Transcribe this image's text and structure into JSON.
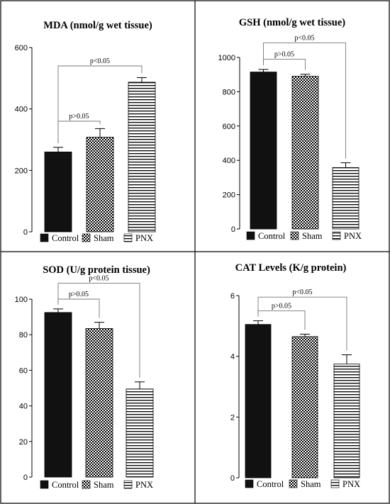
{
  "chart_data": [
    {
      "type": "bar",
      "title": "MDA (nmol/g wet tissue)",
      "categories": [
        "Control",
        "Sham",
        "PNX"
      ],
      "values": [
        260,
        308,
        487
      ],
      "errors": [
        15,
        28,
        15
      ],
      "ylim": [
        0,
        600
      ],
      "yticks": [
        0,
        200,
        400,
        600
      ],
      "annotations": [
        {
          "text": "p>0.05",
          "from": 0,
          "to": 1,
          "y": 360
        },
        {
          "text": "p<0.05",
          "from": 0,
          "to": 2,
          "y": 540
        }
      ],
      "legend": "bottom"
    },
    {
      "type": "bar",
      "title": "GSH (nmol/g wet tissue)",
      "categories": [
        "Control",
        "Sham",
        "PNX"
      ],
      "values": [
        915,
        890,
        358
      ],
      "errors": [
        15,
        12,
        28
      ],
      "ylim": [
        0,
        1000
      ],
      "yticks": [
        0,
        200,
        400,
        600,
        800,
        1000
      ],
      "annotations": [
        {
          "text": "p>0.05",
          "from": 0,
          "to": 1,
          "y": 990
        },
        {
          "text": "p<0.05",
          "from": 0,
          "to": 2,
          "y": 1085
        }
      ],
      "legend": "bottom"
    },
    {
      "type": "bar",
      "title": "SOD  (U/g protein tissue)",
      "categories": [
        "Control",
        "Sham",
        "PNX"
      ],
      "values": [
        92.5,
        83.5,
        49.5
      ],
      "errors": [
        2,
        3.5,
        4
      ],
      "ylim": [
        0,
        100
      ],
      "yticks": [
        0,
        20,
        40,
        60,
        80,
        100
      ],
      "annotations": [
        {
          "text": "p>0.05",
          "from": 0,
          "to": 1,
          "y": 100
        },
        {
          "text": "p<0.05",
          "from": 0,
          "to": 2,
          "y": 109
        }
      ],
      "legend": "bottom"
    },
    {
      "type": "bar",
      "title": "CAT Levels (K/g protein)",
      "categories": [
        "Control",
        "Sham",
        "PNX"
      ],
      "values": [
        5.05,
        4.65,
        3.75
      ],
      "errors": [
        0.12,
        0.08,
        0.3
      ],
      "ylim": [
        0,
        6
      ],
      "yticks": [
        0,
        2,
        4,
        6
      ],
      "annotations": [
        {
          "text": "p>0.05",
          "from": 0,
          "to": 1,
          "y": 5.5
        },
        {
          "text": "p<0.05",
          "from": 0,
          "to": 2,
          "y": 5.95
        }
      ],
      "legend": "bottom"
    }
  ]
}
